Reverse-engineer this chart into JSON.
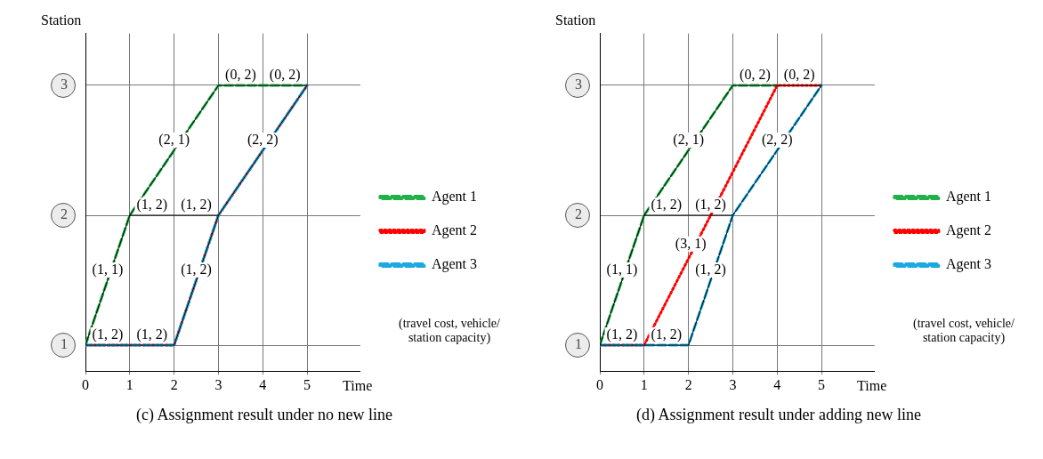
{
  "chart_data": [
    {
      "type": "line",
      "title": "(c) Assignment result under no new line",
      "xlabel": "Time",
      "ylabel": "Station",
      "xlim": [
        0,
        6.2
      ],
      "xticks": [
        0,
        1,
        2,
        3,
        4,
        5
      ],
      "ylim": [
        0.8,
        3.4
      ],
      "yticks": [
        1,
        2,
        3
      ],
      "grid": true,
      "legend": "right",
      "marker": "none",
      "series": [
        {
          "color": "#000000",
          "line_style": "solid",
          "x": [
            0,
            1,
            null,
            1,
            3,
            null,
            1,
            2,
            3,
            null,
            0,
            1,
            2,
            null,
            2,
            3,
            5,
            null,
            3,
            4,
            5
          ],
          "values": [
            1,
            2,
            null,
            2,
            3,
            null,
            2,
            2,
            2,
            null,
            1,
            1,
            1,
            null,
            1,
            2,
            3,
            null,
            3,
            3,
            3
          ]
        },
        {
          "name": "Agent 1",
          "color": "#22b04a",
          "line_style": "dashed",
          "x": [
            0,
            1,
            3,
            5
          ],
          "values": [
            1,
            2,
            3,
            3
          ]
        },
        {
          "name": "Agent 2",
          "color": "#ff0000",
          "line_style": "dotted",
          "x": [
            0,
            2,
            3,
            5
          ],
          "values": [
            1,
            1,
            2,
            3
          ]
        },
        {
          "name": "Agent 3",
          "color": "#1ca8e0",
          "line_style": "dashed",
          "x": [
            0,
            2,
            3,
            5
          ],
          "values": [
            1,
            1,
            2,
            3
          ]
        }
      ],
      "annotations": [
        {
          "text": "(1, 2)",
          "x": 0.5,
          "y": 1
        },
        {
          "text": "(1, 2)",
          "x": 1.5,
          "y": 1
        },
        {
          "text": "(1, 1)",
          "x": 0.5,
          "y": 1.5
        },
        {
          "text": "(2, 1)",
          "x": 2,
          "y": 2.5
        },
        {
          "text": "(1, 2)",
          "x": 1.5,
          "y": 2
        },
        {
          "text": "(1, 2)",
          "x": 2.5,
          "y": 2
        },
        {
          "text": "(1, 2)",
          "x": 2.5,
          "y": 1.5
        },
        {
          "text": "(2, 2)",
          "x": 4,
          "y": 2.5
        },
        {
          "text": "(0, 2)",
          "x": 3.5,
          "y": 3
        },
        {
          "text": "(0, 2)",
          "x": 4.5,
          "y": 3
        },
        "(travel cost, vehicle/ station capacity)"
      ]
    },
    {
      "type": "line",
      "title": "(d) Assignment result under adding new line",
      "xlabel": "Time",
      "ylabel": "Station",
      "xlim": [
        0,
        6.2
      ],
      "xticks": [
        0,
        1,
        2,
        3,
        4,
        5
      ],
      "ylim": [
        0.8,
        3.4
      ],
      "yticks": [
        1,
        2,
        3
      ],
      "grid": true,
      "legend": "right",
      "marker": "none",
      "series": [
        {
          "color": "#000000",
          "line_style": "solid",
          "x": [
            0,
            1,
            null,
            1,
            3,
            4,
            5,
            null,
            1,
            2,
            3,
            null,
            0,
            1,
            2,
            null,
            2,
            3,
            5
          ],
          "values": [
            1,
            2,
            null,
            2,
            3,
            3,
            3,
            null,
            2,
            2,
            2,
            null,
            1,
            1,
            1,
            null,
            1,
            2,
            3
          ]
        },
        {
          "name": "Agent 1",
          "color": "#22b04a",
          "line_style": "dashed",
          "x": [
            0,
            1,
            3,
            4
          ],
          "values": [
            1,
            2,
            3,
            3
          ]
        },
        {
          "name": "Agent 2",
          "color": "#ff0000",
          "line_style": "dotted",
          "x": [
            0,
            1,
            4,
            5
          ],
          "values": [
            1,
            1,
            3,
            3
          ]
        },
        {
          "name": "Agent 3",
          "color": "#1ca8e0",
          "line_style": "dashed",
          "x": [
            0,
            2,
            3,
            5
          ],
          "values": [
            1,
            1,
            2,
            3
          ]
        }
      ],
      "annotations": [
        {
          "text": "(1, 2)",
          "x": 0.5,
          "y": 1
        },
        {
          "text": "(1, 2)",
          "x": 1.5,
          "y": 1
        },
        {
          "text": "(1, 1)",
          "x": 0.5,
          "y": 1.5
        },
        {
          "text": "(2, 1)",
          "x": 2,
          "y": 2.5
        },
        {
          "text": "(1, 2)",
          "x": 1.5,
          "y": 2
        },
        {
          "text": "(1, 2)",
          "x": 2.5,
          "y": 2
        },
        {
          "text": "(3, 1)",
          "x": 2.05,
          "y": 1.7
        },
        {
          "text": "(1, 2)",
          "x": 2.5,
          "y": 1.5
        },
        {
          "text": "(2, 2)",
          "x": 4,
          "y": 2.5
        },
        {
          "text": "(0, 2)",
          "x": 3.5,
          "y": 3
        },
        {
          "text": "(0, 2)",
          "x": 4.5,
          "y": 3
        },
        "(travel cost, vehicle/ station capacity)"
      ]
    }
  ]
}
